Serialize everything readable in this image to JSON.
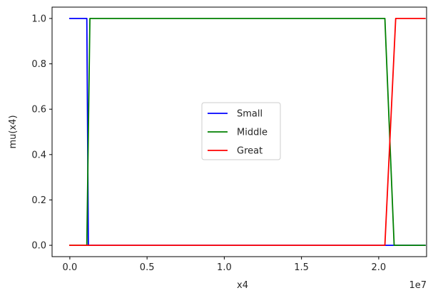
{
  "chart_data": {
    "type": "line",
    "title": "",
    "xlabel": "x4",
    "ylabel": "mu(x4)",
    "x_offset_label": "1e7",
    "xlim": [
      -1150000,
      23100000
    ],
    "ylim": [
      -0.05,
      1.05
    ],
    "xticks": [
      0,
      5000000,
      10000000,
      15000000,
      20000000
    ],
    "xtick_labels": [
      "0.0",
      "0.5",
      "1.0",
      "1.5",
      "2.0"
    ],
    "yticks": [
      0,
      0.2,
      0.4,
      0.6,
      0.8,
      1.0
    ],
    "ytick_labels": [
      "0.0",
      "0.2",
      "0.4",
      "0.6",
      "0.8",
      "1.0"
    ],
    "grid": false,
    "legend_position": "center",
    "series": [
      {
        "name": "Small",
        "color": "#0000ff",
        "x": [
          0,
          1100000,
          1200000,
          23000000
        ],
        "y": [
          1.0,
          1.0,
          0.0,
          0.0
        ]
      },
      {
        "name": "Middle",
        "color": "#008000",
        "x": [
          0,
          1100000,
          1300000,
          20400000,
          21000000,
          23000000
        ],
        "y": [
          0.0,
          0.0,
          1.0,
          1.0,
          0.0,
          0.0
        ]
      },
      {
        "name": "Great",
        "color": "#ff0000",
        "x": [
          0,
          20400000,
          21100000,
          23000000
        ],
        "y": [
          0.0,
          0.0,
          1.0,
          1.0
        ]
      }
    ]
  }
}
